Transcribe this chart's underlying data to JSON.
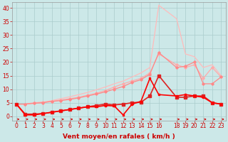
{
  "xlabel": "Vent moyen/en rafales ( km/h )",
  "xlim": [
    -0.5,
    23.5
  ],
  "ylim": [
    -1.5,
    42
  ],
  "yticks": [
    0,
    5,
    10,
    15,
    20,
    25,
    30,
    35,
    40
  ],
  "xticks": [
    0,
    1,
    2,
    3,
    4,
    5,
    6,
    7,
    8,
    9,
    10,
    11,
    12,
    13,
    14,
    15,
    16,
    18,
    19,
    20,
    21,
    22,
    23
  ],
  "bg_color": "#cce8e8",
  "grid_color": "#aacccc",
  "series": [
    {
      "x": [
        0,
        1,
        2,
        3,
        4,
        5,
        6,
        7,
        8,
        9,
        10,
        11,
        12,
        13,
        14,
        15,
        16,
        18,
        19,
        20,
        21,
        22,
        23
      ],
      "y": [
        4.5,
        4.5,
        4.8,
        5.2,
        5.8,
        6.5,
        7.2,
        8.0,
        8.8,
        9.8,
        10.8,
        12.0,
        13.0,
        14.5,
        16.0,
        18.0,
        41,
        36,
        23,
        22,
        18,
        19,
        15
      ],
      "color": "#ffbbbb",
      "lw": 0.9,
      "marker": null,
      "ms": 0,
      "zorder": 1
    },
    {
      "x": [
        0,
        1,
        2,
        3,
        4,
        5,
        6,
        7,
        8,
        9,
        10,
        11,
        12,
        13,
        14,
        15,
        16,
        18,
        19,
        20,
        21,
        22,
        23
      ],
      "y": [
        4.5,
        4.5,
        5.0,
        5.2,
        5.5,
        6.0,
        6.5,
        7.0,
        7.8,
        8.5,
        9.5,
        10.8,
        12.0,
        13.0,
        14.0,
        16.0,
        23,
        19,
        18,
        19,
        14,
        18,
        14.5
      ],
      "color": "#ffaaaa",
      "lw": 0.9,
      "marker": "D",
      "ms": 1.8,
      "zorder": 2
    },
    {
      "x": [
        0,
        1,
        2,
        3,
        4,
        5,
        6,
        7,
        8,
        9,
        10,
        11,
        12,
        13,
        14,
        15,
        16,
        18,
        19,
        20,
        21,
        22,
        23
      ],
      "y": [
        4.5,
        4.5,
        4.8,
        5.0,
        5.5,
        5.8,
        6.2,
        6.8,
        7.5,
        8.2,
        9.0,
        10.0,
        11.0,
        12.5,
        13.5,
        15.5,
        23.5,
        18,
        18.5,
        20,
        12,
        12,
        14.5
      ],
      "color": "#ff8888",
      "lw": 0.9,
      "marker": "D",
      "ms": 1.8,
      "zorder": 3
    },
    {
      "x": [
        0,
        1,
        2,
        3,
        4,
        5,
        6,
        7,
        8,
        9,
        10,
        11,
        12,
        13,
        14,
        15,
        16,
        18,
        19,
        20,
        21,
        22,
        23
      ],
      "y": [
        4.5,
        0.8,
        0.8,
        1.0,
        1.5,
        2.0,
        2.5,
        3.0,
        3.5,
        4.0,
        4.5,
        4.2,
        4.5,
        5.0,
        5.2,
        7.5,
        15,
        7,
        7,
        7.5,
        7.5,
        5,
        4.5
      ],
      "color": "#dd2222",
      "lw": 1.2,
      "marker": "s",
      "ms": 2.2,
      "zorder": 5
    },
    {
      "x": [
        0,
        1,
        2,
        3,
        4,
        5,
        6,
        7,
        8,
        9,
        10,
        11,
        12,
        13,
        14,
        15,
        16,
        18,
        19,
        20,
        21,
        22,
        23
      ],
      "y": [
        4.5,
        0.5,
        0.5,
        1.0,
        1.5,
        2.0,
        2.5,
        3.0,
        3.5,
        3.5,
        4.0,
        3.8,
        0.5,
        4.5,
        5.5,
        14,
        8,
        7.5,
        8,
        7.5,
        7,
        5,
        4.5
      ],
      "color": "#ff0000",
      "lw": 1.2,
      "marker": "s",
      "ms": 2.0,
      "zorder": 6
    }
  ],
  "arrows": {
    "x_positions": [
      0,
      1,
      2,
      3,
      4,
      5,
      6,
      7,
      8,
      9,
      10,
      11,
      12,
      13,
      14,
      15,
      16,
      18,
      19,
      20,
      21,
      22,
      23
    ],
    "y": -1.1,
    "color": "#cc0000",
    "angles": [
      90,
      0,
      0,
      45,
      0,
      0,
      45,
      0,
      70,
      0,
      0,
      0,
      80,
      0,
      45,
      120,
      0,
      0,
      135,
      0,
      0,
      0,
      0
    ]
  },
  "font_color": "#cc0000",
  "xlabel_fontsize": 6.5,
  "tick_fontsize": 5.5
}
